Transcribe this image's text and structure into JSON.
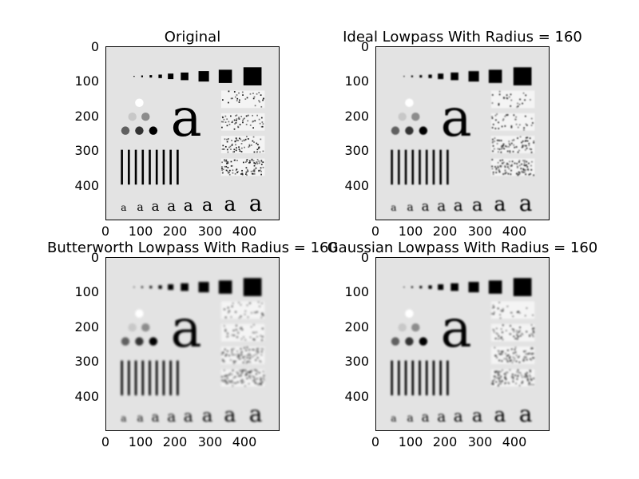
{
  "panels": [
    {
      "title": "Original",
      "xticks": [
        "0",
        "100",
        "200",
        "300",
        "400"
      ],
      "yticks": [
        "0",
        "100",
        "200",
        "300",
        "400"
      ]
    },
    {
      "title": "Ideal Lowpass With Radius = 160",
      "xticks": [
        "0",
        "100",
        "200",
        "300",
        "400"
      ],
      "yticks": [
        "0",
        "100",
        "200",
        "300",
        "400"
      ]
    },
    {
      "title": "Butterworth Lowpass With Radius = 160",
      "xticks": [
        "0",
        "100",
        "200",
        "300",
        "400"
      ],
      "yticks": [
        "0",
        "100",
        "200",
        "300",
        "400"
      ]
    },
    {
      "title": "Gaussian Lowpass With Radius = 160",
      "xticks": [
        "0",
        "100",
        "200",
        "300",
        "400"
      ],
      "yticks": [
        "0",
        "100",
        "200",
        "300",
        "400"
      ]
    }
  ],
  "test_pattern": {
    "letter": "a",
    "small_letters": [
      "a",
      "a",
      "a",
      "a",
      "a",
      "a",
      "a",
      "a"
    ]
  }
}
